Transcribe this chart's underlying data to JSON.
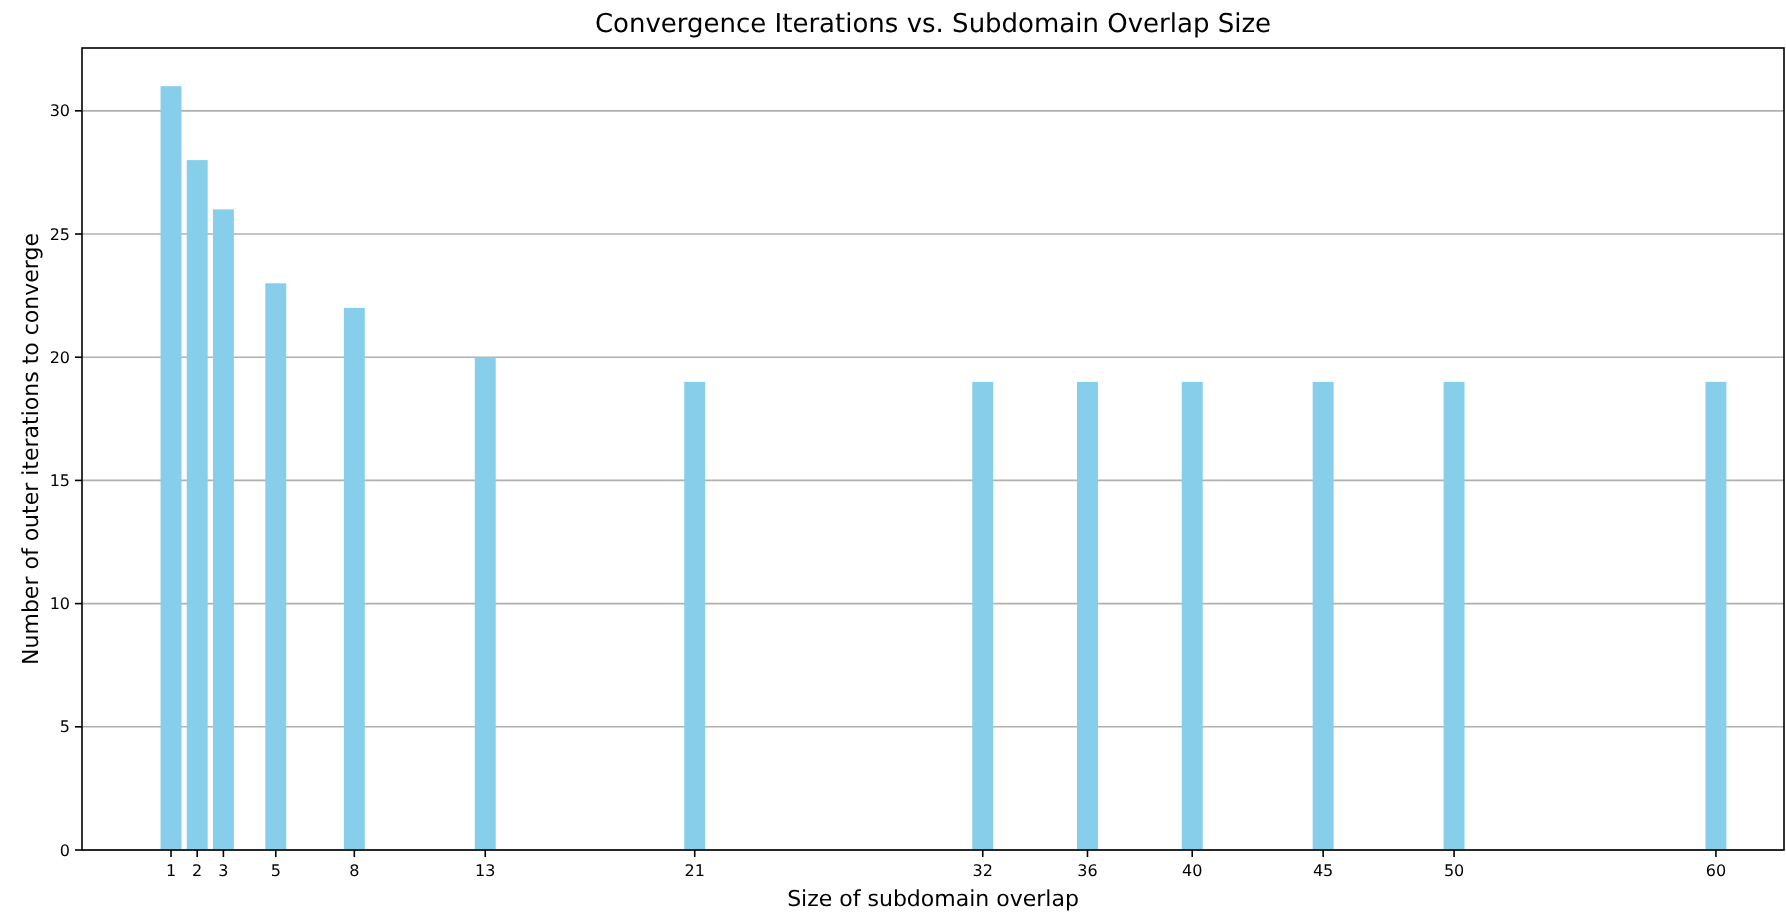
{
  "chart_data": {
    "type": "bar",
    "title": "Convergence Iterations vs. Subdomain Overlap Size",
    "xlabel": "Size of subdomain overlap",
    "ylabel": "Number of outer iterations to converge",
    "x": [
      1,
      2,
      3,
      5,
      8,
      13,
      21,
      32,
      36,
      40,
      45,
      50,
      60
    ],
    "values": [
      31,
      28,
      26,
      23,
      22,
      20,
      19,
      19,
      19,
      19,
      19,
      19,
      19
    ],
    "color": "#87ceeb",
    "xlim": [
      -2.4,
      62.6
    ],
    "xticks": [
      1,
      2,
      3,
      5,
      8,
      13,
      21,
      32,
      36,
      40,
      45,
      50,
      60
    ],
    "ylim": [
      0,
      32.55
    ],
    "yticks": [
      0,
      5,
      10,
      15,
      20,
      25,
      30
    ],
    "grid": "y"
  }
}
